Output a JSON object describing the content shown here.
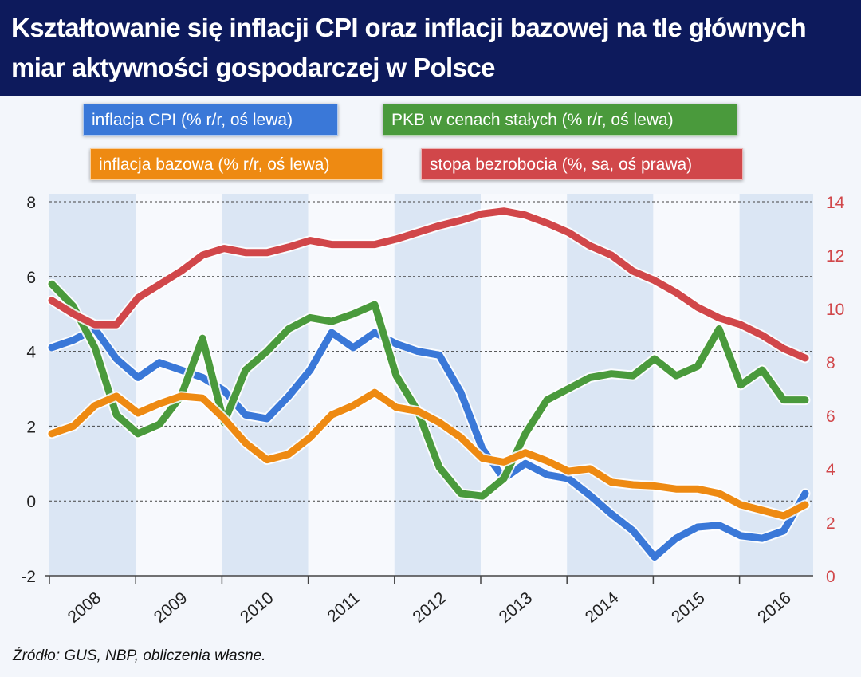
{
  "chart_data": {
    "type": "line",
    "title": "Kształtowanie się inflacji CPI oraz inflacji bazowej na tle głównych miar aktywności gospodarczej w Polsce",
    "x_tick_labels": [
      "2008",
      "2009",
      "2010",
      "2011",
      "2012",
      "2013",
      "2014",
      "2015",
      "2016"
    ],
    "x_frequency": "quarterly",
    "y_left": {
      "ticks": [
        "-2",
        "0",
        "2",
        "4",
        "6",
        "8"
      ],
      "range": [
        -2,
        8
      ]
    },
    "y_right": {
      "ticks": [
        "0",
        "2",
        "4",
        "6",
        "8",
        "10",
        "12",
        "14"
      ],
      "range": [
        0,
        14
      ],
      "color": "#d1474a"
    },
    "grid": "horizontal dotted",
    "legend_position": "top",
    "series": [
      {
        "name": "inflacja CPI (% r/r, oś lewa)",
        "axis": "left",
        "color": "#3a78d8",
        "values": [
          4.1,
          4.3,
          4.6,
          3.8,
          3.3,
          3.7,
          3.5,
          3.3,
          2.95,
          2.3,
          2.2,
          2.8,
          3.5,
          4.5,
          4.1,
          4.5,
          4.2,
          4.0,
          3.9,
          2.9,
          1.4,
          0.6,
          1.0,
          0.7,
          0.6,
          0.15,
          -0.35,
          -0.8,
          -1.5,
          -1.0,
          -0.7,
          -0.65,
          -0.93,
          -1.0,
          -0.8,
          0.2
        ]
      },
      {
        "name": "PKB w cenach stałych (% r/r, oś lewa)",
        "axis": "left",
        "color": "#4a9a3c",
        "values": [
          5.8,
          5.2,
          4.1,
          2.3,
          1.8,
          2.05,
          2.8,
          4.35,
          2.1,
          3.5,
          4.0,
          4.6,
          4.9,
          4.8,
          5.0,
          5.25,
          3.35,
          2.4,
          0.9,
          0.2,
          0.13,
          0.6,
          1.8,
          2.7,
          3.0,
          3.3,
          3.4,
          3.35,
          3.8,
          3.35,
          3.6,
          4.6,
          3.1,
          3.5,
          2.7,
          2.7
        ]
      },
      {
        "name": "inflacja bazowa (% r/r, oś lewa)",
        "axis": "left",
        "color": "#ee8a12",
        "values": [
          1.8,
          2.0,
          2.55,
          2.8,
          2.35,
          2.6,
          2.8,
          2.75,
          2.2,
          1.55,
          1.1,
          1.25,
          1.7,
          2.3,
          2.55,
          2.9,
          2.5,
          2.4,
          2.1,
          1.7,
          1.14,
          1.04,
          1.29,
          1.07,
          0.79,
          0.86,
          0.5,
          0.43,
          0.4,
          0.32,
          0.32,
          0.2,
          -0.1,
          -0.25,
          -0.4,
          -0.1
        ]
      },
      {
        "name": "stopa bezrobocia (%, sa, oś prawa)",
        "axis": "right",
        "color": "#d1474a",
        "values": [
          10.3,
          9.8,
          9.4,
          9.4,
          10.4,
          10.9,
          11.4,
          12.0,
          12.25,
          12.1,
          12.1,
          12.3,
          12.55,
          12.4,
          12.4,
          12.4,
          12.6,
          12.85,
          13.1,
          13.3,
          13.55,
          13.65,
          13.5,
          13.2,
          12.85,
          12.35,
          12.0,
          11.4,
          11.05,
          10.6,
          10.05,
          9.65,
          9.4,
          9.0,
          8.5,
          8.15
        ]
      }
    ],
    "source": "Źródło: GUS, NBP, obliczenia własne."
  },
  "colors": {
    "header_bg": "#0d1a5c"
  }
}
